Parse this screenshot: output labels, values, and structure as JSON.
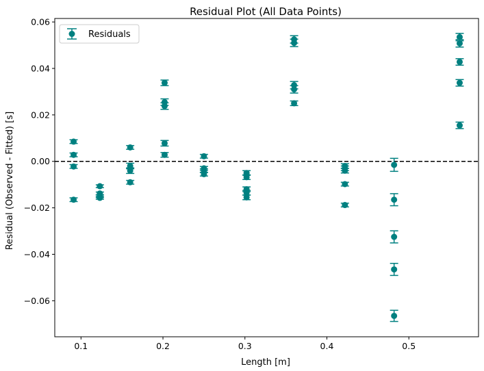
{
  "chart_data": {
    "type": "scatter",
    "title": "Residual Plot (All Data Points)",
    "xlabel": "Length [m]",
    "ylabel": "Residual (Observed - Fitted) [s]",
    "xlim": [
      0.068,
      0.585
    ],
    "ylim": [
      -0.0755,
      0.0615
    ],
    "xticks": [
      0.1,
      0.2,
      0.3,
      0.4,
      0.5
    ],
    "xtick_labels": [
      "0.1",
      "0.2",
      "0.3",
      "0.4",
      "0.5"
    ],
    "yticks": [
      -0.06,
      -0.04,
      -0.02,
      0.0,
      0.02,
      0.04,
      0.06
    ],
    "ytick_labels": [
      "−0.06",
      "−0.04",
      "−0.02",
      "0.00",
      "0.02",
      "0.04",
      "0.06"
    ],
    "reference_line": {
      "y": 0.0,
      "style": "dashed",
      "color": "#000000"
    },
    "grid": false,
    "legend": {
      "position": "top-left",
      "entries": [
        "Residuals"
      ]
    },
    "series": [
      {
        "name": "Residuals",
        "color": "#008080",
        "points": [
          {
            "x": 0.091,
            "y": 0.0085,
            "err": 0.0008
          },
          {
            "x": 0.091,
            "y": 0.0028,
            "err": 0.0008
          },
          {
            "x": 0.091,
            "y": -0.0022,
            "err": 0.0008
          },
          {
            "x": 0.091,
            "y": -0.0165,
            "err": 0.0008
          },
          {
            "x": 0.123,
            "y": -0.0107,
            "err": 0.0006
          },
          {
            "x": 0.123,
            "y": -0.0138,
            "err": 0.0006
          },
          {
            "x": 0.123,
            "y": -0.015,
            "err": 0.0006
          },
          {
            "x": 0.123,
            "y": -0.0157,
            "err": 0.0006
          },
          {
            "x": 0.16,
            "y": 0.006,
            "err": 0.0008
          },
          {
            "x": 0.16,
            "y": -0.002,
            "err": 0.0012
          },
          {
            "x": 0.16,
            "y": -0.004,
            "err": 0.0012
          },
          {
            "x": 0.16,
            "y": -0.009,
            "err": 0.0008
          },
          {
            "x": 0.202,
            "y": 0.0338,
            "err": 0.0012
          },
          {
            "x": 0.202,
            "y": 0.0255,
            "err": 0.0014
          },
          {
            "x": 0.202,
            "y": 0.0238,
            "err": 0.0014
          },
          {
            "x": 0.202,
            "y": 0.0078,
            "err": 0.0012
          },
          {
            "x": 0.202,
            "y": 0.0028,
            "err": 0.001
          },
          {
            "x": 0.25,
            "y": 0.0022,
            "err": 0.0008
          },
          {
            "x": 0.25,
            "y": -0.003,
            "err": 0.0008
          },
          {
            "x": 0.25,
            "y": -0.004,
            "err": 0.0008
          },
          {
            "x": 0.25,
            "y": -0.0055,
            "err": 0.0008
          },
          {
            "x": 0.302,
            "y": -0.005,
            "err": 0.001
          },
          {
            "x": 0.302,
            "y": -0.0068,
            "err": 0.001
          },
          {
            "x": 0.302,
            "y": -0.012,
            "err": 0.001
          },
          {
            "x": 0.302,
            "y": -0.0135,
            "err": 0.001
          },
          {
            "x": 0.302,
            "y": -0.0155,
            "err": 0.001
          },
          {
            "x": 0.36,
            "y": 0.0525,
            "err": 0.0016
          },
          {
            "x": 0.36,
            "y": 0.051,
            "err": 0.0016
          },
          {
            "x": 0.36,
            "y": 0.0328,
            "err": 0.0016
          },
          {
            "x": 0.36,
            "y": 0.031,
            "err": 0.0016
          },
          {
            "x": 0.36,
            "y": 0.025,
            "err": 0.001
          },
          {
            "x": 0.422,
            "y": -0.002,
            "err": 0.001
          },
          {
            "x": 0.422,
            "y": -0.003,
            "err": 0.001
          },
          {
            "x": 0.422,
            "y": -0.004,
            "err": 0.001
          },
          {
            "x": 0.422,
            "y": -0.0098,
            "err": 0.0008
          },
          {
            "x": 0.422,
            "y": -0.0188,
            "err": 0.0008
          },
          {
            "x": 0.482,
            "y": -0.0015,
            "err": 0.0028
          },
          {
            "x": 0.482,
            "y": -0.0165,
            "err": 0.0026
          },
          {
            "x": 0.482,
            "y": -0.0325,
            "err": 0.0026
          },
          {
            "x": 0.482,
            "y": -0.0465,
            "err": 0.0026
          },
          {
            "x": 0.482,
            "y": -0.0665,
            "err": 0.0024
          },
          {
            "x": 0.562,
            "y": 0.0535,
            "err": 0.0016
          },
          {
            "x": 0.562,
            "y": 0.0508,
            "err": 0.0016
          },
          {
            "x": 0.562,
            "y": 0.0428,
            "err": 0.0014
          },
          {
            "x": 0.562,
            "y": 0.0338,
            "err": 0.0014
          },
          {
            "x": 0.562,
            "y": 0.0155,
            "err": 0.0014
          }
        ]
      }
    ]
  }
}
